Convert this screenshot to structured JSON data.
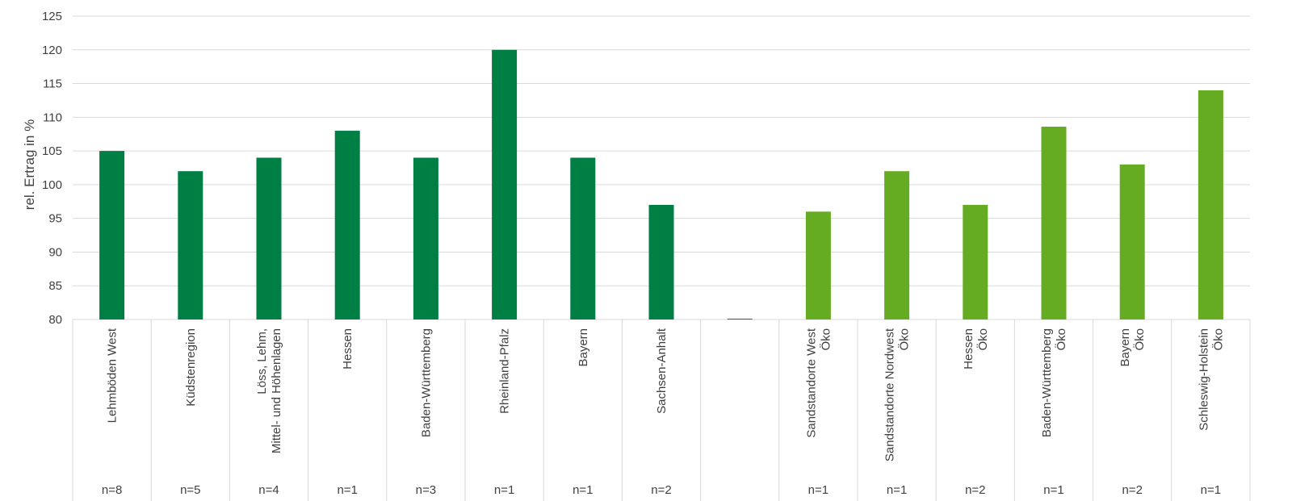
{
  "chart_data": {
    "type": "bar",
    "ylabel": "rel. Ertrag in %",
    "ylim": [
      80,
      125
    ],
    "yticks": [
      "80",
      "85",
      "90",
      "95",
      "100",
      "105",
      "110",
      "115",
      "120",
      "125"
    ],
    "grid": true,
    "categories": [
      [
        "Lehmböden West"
      ],
      [
        "Küdstenregion"
      ],
      [
        "Löss, Lehm,",
        "Mittel- und Höhenlagen"
      ],
      [
        "Hessen"
      ],
      [
        "Baden-Württemberg"
      ],
      [
        "Rheinland-Pfalz"
      ],
      [
        "Bayern"
      ],
      [
        "Sachsen-Anhalt"
      ],
      [
        ""
      ],
      [
        "Sandstandorte West",
        "Öko"
      ],
      [
        "Sandstandorte Nordwest",
        "Öko"
      ],
      [
        "Hessen",
        "Öko"
      ],
      [
        "Baden-Württemberg",
        "Öko"
      ],
      [
        "Bayern",
        "Öko"
      ],
      [
        "Schleswig-Holstein",
        "Öko"
      ]
    ],
    "n_labels": [
      "n=8",
      "n=5",
      "n=4",
      "n=1",
      "n=3",
      "n=1",
      "n=1",
      "n=2",
      "",
      "n=1",
      "n=1",
      "n=2",
      "n=1",
      "n=2",
      "n=1"
    ],
    "values": [
      105,
      102,
      104,
      108,
      104,
      120,
      104,
      97,
      80,
      96,
      102,
      97,
      108.6,
      103,
      114
    ],
    "bar_colors": [
      "#007f45",
      "#007f45",
      "#007f45",
      "#007f45",
      "#007f45",
      "#007f45",
      "#007f45",
      "#007f45",
      "#007f45",
      "#66ac23",
      "#66ac23",
      "#66ac23",
      "#66ac23",
      "#66ac23",
      "#66ac23"
    ]
  },
  "colors": {
    "conventional": "#007f45",
    "organic": "#66ac23",
    "gridline": "#d9d9d9",
    "text": "#404040"
  }
}
